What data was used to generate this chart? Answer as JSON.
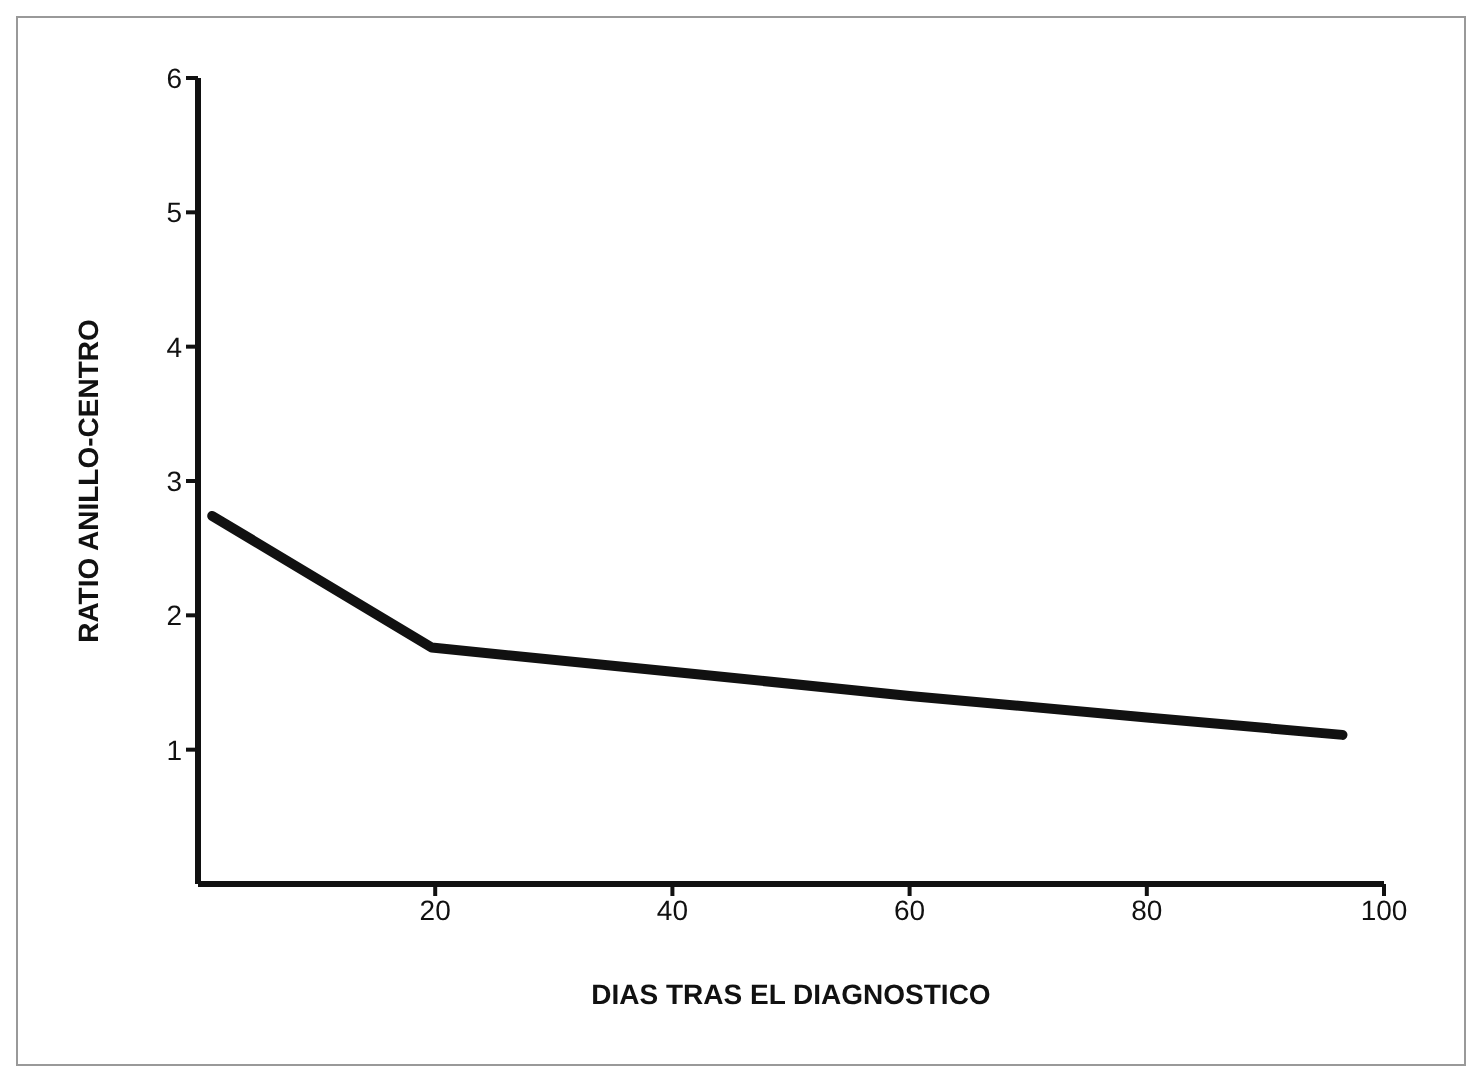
{
  "chart_data": {
    "type": "line",
    "xlabel": "DIAS TRAS EL DIAGNOSTICO",
    "ylabel": "RATIO ANILLO-CENTRO",
    "x": [
      1.2,
      19.7,
      40,
      60,
      80,
      96.5
    ],
    "series": [
      {
        "color": "#111111",
        "values": [
          2.74,
          1.76,
          1.58,
          1.4,
          1.24,
          1.11
        ]
      }
    ],
    "xlim": [
      0,
      100
    ],
    "xticks": [
      20,
      40,
      60,
      80,
      100
    ],
    "ylim": [
      0,
      6
    ],
    "yticks": [
      1,
      2,
      3,
      4,
      5,
      6
    ],
    "grid": false,
    "legend": false,
    "marker": "none",
    "line_style": "solid"
  }
}
